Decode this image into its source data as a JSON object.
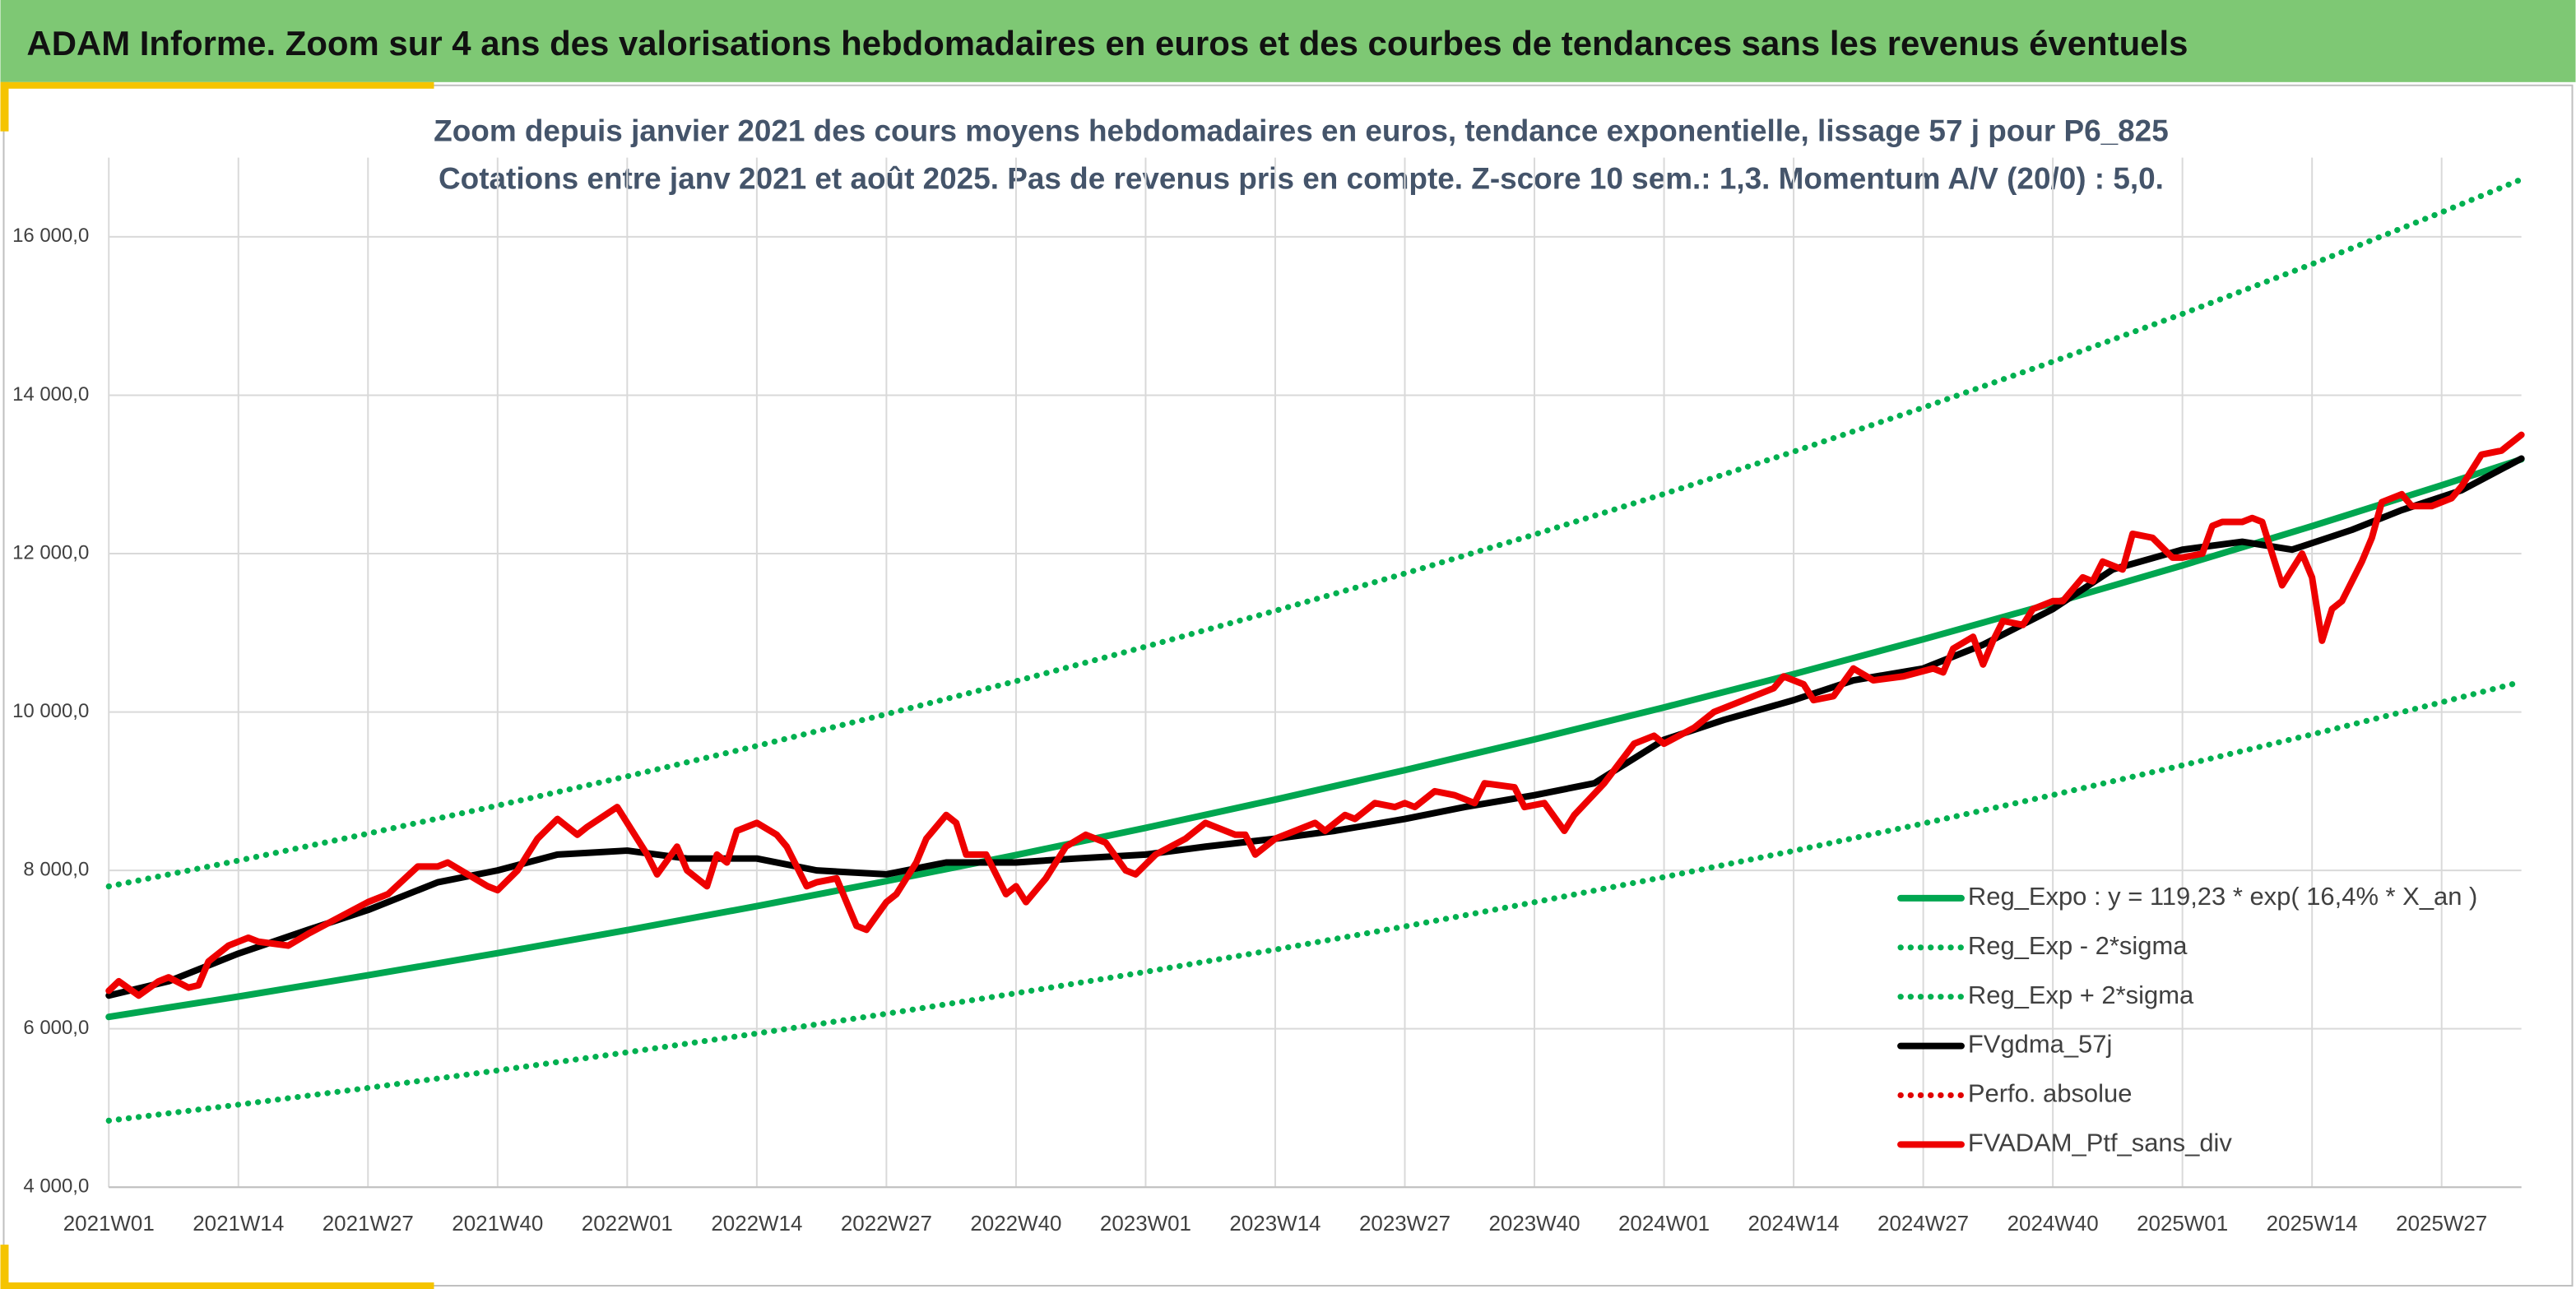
{
  "header": {
    "title": "ADAM Informe. Zoom sur 4 ans des valorisations hebdomadaires en euros et des courbes de tendances sans les revenus éventuels"
  },
  "chart_data": {
    "type": "line",
    "title": "Zoom depuis janvier 2021 des cours moyens hebdomadaires en euros, tendance exponentielle, lissage 57 j pour P6_825",
    "subtitle": "Cotations entre janv 2021 et août 2025. Pas de revenus pris en compte. Z-score 10 sem.: 1,3. Momentum A/V (20/0) : 5,0.",
    "grid": true,
    "xlim": [
      0,
      242
    ],
    "xticks": [
      {
        "value": 0,
        "label": "2021W01"
      },
      {
        "value": 13,
        "label": "2021W14"
      },
      {
        "value": 26,
        "label": "2021W27"
      },
      {
        "value": 39,
        "label": "2021W40"
      },
      {
        "value": 52,
        "label": "2022W01"
      },
      {
        "value": 65,
        "label": "2022W14"
      },
      {
        "value": 78,
        "label": "2022W27"
      },
      {
        "value": 91,
        "label": "2022W40"
      },
      {
        "value": 104,
        "label": "2023W01"
      },
      {
        "value": 117,
        "label": "2023W14"
      },
      {
        "value": 130,
        "label": "2023W27"
      },
      {
        "value": 143,
        "label": "2023W40"
      },
      {
        "value": 156,
        "label": "2024W01"
      },
      {
        "value": 169,
        "label": "2024W14"
      },
      {
        "value": 182,
        "label": "2024W27"
      },
      {
        "value": 195,
        "label": "2024W40"
      },
      {
        "value": 208,
        "label": "2025W01"
      },
      {
        "value": 221,
        "label": "2025W14"
      },
      {
        "value": 234,
        "label": "2025W27"
      }
    ],
    "ylim": [
      4000,
      17000
    ],
    "yticks": [
      {
        "value": 4000,
        "label": "4 000,0"
      },
      {
        "value": 6000,
        "label": "6 000,0"
      },
      {
        "value": 8000,
        "label": "8 000,0"
      },
      {
        "value": 10000,
        "label": "10 000,0"
      },
      {
        "value": 12000,
        "label": "12 000,0"
      },
      {
        "value": 14000,
        "label": "14 000,0"
      },
      {
        "value": 16000,
        "label": "16 000,0"
      }
    ],
    "series": [
      {
        "name": "Reg_Expo : y = 119,23 * exp( 16,4% *  X_an )",
        "color": "#00a650",
        "style": "solid",
        "x": [
          0,
          13,
          26,
          39,
          52,
          65,
          78,
          91,
          104,
          117,
          130,
          143,
          156,
          169,
          182,
          195,
          208,
          221,
          234,
          242
        ],
        "values": [
          6150,
          6407,
          6676,
          6955,
          7246,
          7549,
          7865,
          8194,
          8537,
          8894,
          9266,
          9654,
          10058,
          10479,
          10918,
          11375,
          11851,
          12347,
          12863,
          13191
        ]
      },
      {
        "name": "Reg_Exp - 2*sigma",
        "color": "#00b050",
        "style": "dotted",
        "x": [
          0,
          13,
          26,
          39,
          52,
          65,
          78,
          91,
          104,
          117,
          130,
          143,
          156,
          169,
          182,
          195,
          208,
          221,
          234,
          242
        ],
        "values": [
          4840,
          5042,
          5254,
          5474,
          5703,
          5941,
          6190,
          6449,
          6719,
          7000,
          7292,
          7598,
          7916,
          8247,
          8592,
          8952,
          9327,
          9717,
          10123,
          10381
        ]
      },
      {
        "name": "Reg_Exp + 2*sigma",
        "color": "#00b050",
        "style": "dotted",
        "x": [
          0,
          13,
          26,
          39,
          52,
          65,
          78,
          91,
          104,
          117,
          130,
          143,
          156,
          169,
          182,
          195,
          208,
          221,
          234,
          242
        ],
        "values": [
          7798,
          8124,
          8465,
          8819,
          9188,
          9572,
          9973,
          10390,
          10825,
          11278,
          11749,
          12241,
          12754,
          13287,
          13844,
          14424,
          15027,
          15656,
          16310,
          16726
        ]
      },
      {
        "name": "FVgdma_57j",
        "color": "#000000",
        "style": "solid",
        "x": [
          0,
          6,
          13,
          20,
          26,
          33,
          39,
          45,
          52,
          58,
          65,
          71,
          78,
          84,
          91,
          97,
          104,
          110,
          117,
          123,
          130,
          136,
          143,
          149,
          156,
          162,
          169,
          175,
          182,
          188,
          195,
          201,
          208,
          214,
          219,
          225,
          230,
          236,
          242
        ],
        "values": [
          6420,
          6600,
          6950,
          7250,
          7500,
          7850,
          8000,
          8200,
          8250,
          8150,
          8150,
          8000,
          7950,
          8100,
          8100,
          8150,
          8200,
          8300,
          8400,
          8500,
          8650,
          8800,
          8950,
          9100,
          9650,
          9900,
          10150,
          10400,
          10550,
          10850,
          11300,
          11800,
          12050,
          12150,
          12050,
          12300,
          12550,
          12800,
          13200
        ]
      },
      {
        "name": "Perfo. absolue",
        "color": "#e00000",
        "style": "dotted",
        "x": [],
        "values": []
      },
      {
        "name": "FVADAM_Ptf_sans_div",
        "color": "#ee0000",
        "style": "solid",
        "x": [
          0,
          1,
          3,
          5,
          6,
          8,
          9,
          10,
          12,
          14,
          15,
          18,
          20,
          23,
          26,
          28,
          31,
          33,
          34,
          36,
          38,
          39,
          41,
          43,
          45,
          47,
          48,
          51,
          52,
          54,
          55,
          57,
          58,
          60,
          61,
          62,
          63,
          65,
          67,
          68,
          70,
          71,
          73,
          75,
          76,
          78,
          79,
          81,
          82,
          84,
          85,
          86,
          88,
          90,
          91,
          92,
          94,
          96,
          98,
          100,
          102,
          103,
          105,
          108,
          110,
          111,
          113,
          114,
          115,
          117,
          119,
          121,
          122,
          124,
          125,
          127,
          129,
          130,
          131,
          133,
          135,
          137,
          138,
          141,
          142,
          144,
          146,
          147,
          150,
          153,
          155,
          156,
          159,
          161,
          165,
          167,
          168,
          170,
          171,
          173,
          175,
          177,
          180,
          183,
          184,
          185,
          187,
          188,
          189,
          190,
          192,
          193,
          195,
          196,
          198,
          199,
          200,
          202,
          203,
          205,
          207,
          208,
          210,
          211,
          212,
          214,
          215,
          216,
          218,
          219,
          220,
          221,
          222,
          223,
          224,
          226,
          227,
          228,
          230,
          231,
          233,
          235,
          236,
          238,
          240,
          242
        ],
        "values": [
          6480,
          6600,
          6420,
          6600,
          6650,
          6520,
          6550,
          6850,
          7050,
          7150,
          7100,
          7050,
          7200,
          7400,
          7600,
          7700,
          8050,
          8050,
          8100,
          7950,
          7800,
          7750,
          8000,
          8400,
          8650,
          8450,
          8550,
          8800,
          8600,
          8200,
          7950,
          8300,
          8000,
          7800,
          8200,
          8100,
          8500,
          8600,
          8450,
          8300,
          7800,
          7850,
          7900,
          7300,
          7250,
          7600,
          7700,
          8100,
          8400,
          8700,
          8600,
          8200,
          8200,
          7700,
          7800,
          7600,
          7900,
          8300,
          8450,
          8350,
          8000,
          7950,
          8200,
          8400,
          8600,
          8550,
          8450,
          8450,
          8200,
          8400,
          8500,
          8600,
          8500,
          8700,
          8650,
          8850,
          8800,
          8850,
          8800,
          9000,
          8950,
          8850,
          9100,
          9050,
          8800,
          8850,
          8500,
          8700,
          9100,
          9600,
          9700,
          9600,
          9800,
          10000,
          10200,
          10300,
          10450,
          10350,
          10150,
          10200,
          10550,
          10400,
          10450,
          10550,
          10500,
          10800,
          10950,
          10600,
          10900,
          11150,
          11100,
          11300,
          11400,
          11400,
          11700,
          11650,
          11900,
          11800,
          12250,
          12200,
          11950,
          11950,
          12000,
          12350,
          12400,
          12400,
          12450,
          12400,
          11600,
          11800,
          12000,
          11700,
          10900,
          11300,
          11400,
          11900,
          12200,
          12650,
          12750,
          12600,
          12600,
          12700,
          12850,
          13250,
          13300,
          13500
        ]
      }
    ]
  }
}
